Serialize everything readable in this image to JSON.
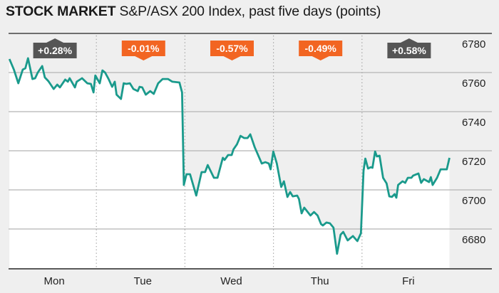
{
  "title": {
    "bold": "STOCK MARKET",
    "rest": " S&P/ASX 200 Index, past five days (points)"
  },
  "colors": {
    "line": "#1a9a8c",
    "up": "#555555",
    "down": "#f26522",
    "bg": "#efefef",
    "fill": "#ffffff"
  },
  "chart_data": {
    "type": "line",
    "title": "STOCK MARKET S&P/ASX 200 Index, past five days (points)",
    "xlabel": "",
    "ylabel": "points",
    "ylim": [
      6660,
      6780
    ],
    "xlim": [
      0,
      5
    ],
    "yticks": [
      6780,
      6760,
      6740,
      6720,
      6700,
      6680
    ],
    "ytick_labels": [
      "6780",
      "6760",
      "6740",
      "6720",
      "6700",
      "6680"
    ],
    "categories": [
      "Mon",
      "Tue",
      "Wed",
      "Thu",
      "Fri"
    ],
    "daily_change": [
      {
        "day": "Mon",
        "label": "+0.28%",
        "direction": "up"
      },
      {
        "day": "Tue",
        "label": "-0.01%",
        "direction": "down"
      },
      {
        "day": "Wed",
        "label": "-0.57%",
        "direction": "down"
      },
      {
        "day": "Thu",
        "label": "-0.49%",
        "direction": "down"
      },
      {
        "day": "Fri",
        "label": "+0.58%",
        "direction": "up"
      }
    ],
    "grid": true,
    "series": [
      {
        "name": "S&P/ASX 200",
        "points": [
          [
            0.01,
            6766.9
          ],
          [
            0.06,
            6761.5
          ],
          [
            0.11,
            6754.5
          ],
          [
            0.16,
            6761.5
          ],
          [
            0.19,
            6762.2
          ],
          [
            0.22,
            6767.3
          ],
          [
            0.27,
            6756.7
          ],
          [
            0.3,
            6757.1
          ],
          [
            0.33,
            6760.0
          ],
          [
            0.38,
            6763.3
          ],
          [
            0.41,
            6757.5
          ],
          [
            0.45,
            6755.6
          ],
          [
            0.51,
            6751.6
          ],
          [
            0.55,
            6753.8
          ],
          [
            0.58,
            6752.4
          ],
          [
            0.64,
            6756.4
          ],
          [
            0.67,
            6755.3
          ],
          [
            0.69,
            6757.1
          ],
          [
            0.75,
            6752.4
          ],
          [
            0.77,
            6755.3
          ],
          [
            0.83,
            6757.1
          ],
          [
            0.89,
            6754.5
          ],
          [
            0.93,
            6754.2
          ],
          [
            0.96,
            6749.8
          ],
          [
            0.98,
            6758.5
          ],
          [
            1.03,
            6754.5
          ],
          [
            1.06,
            6761.1
          ],
          [
            1.09,
            6760.0
          ],
          [
            1.13,
            6756.7
          ],
          [
            1.17,
            6752.7
          ],
          [
            1.2,
            6755.3
          ],
          [
            1.22,
            6748.7
          ],
          [
            1.27,
            6746.5
          ],
          [
            1.3,
            6754.5
          ],
          [
            1.33,
            6754.2
          ],
          [
            1.37,
            6754.5
          ],
          [
            1.41,
            6751.6
          ],
          [
            1.46,
            6750.5
          ],
          [
            1.48,
            6752.7
          ],
          [
            1.51,
            6752.4
          ],
          [
            1.55,
            6748.7
          ],
          [
            1.6,
            6750.5
          ],
          [
            1.64,
            6749.1
          ],
          [
            1.69,
            6754.5
          ],
          [
            1.74,
            6756.7
          ],
          [
            1.8,
            6756.7
          ],
          [
            1.85,
            6755.3
          ],
          [
            1.93,
            6754.9
          ],
          [
            1.96,
            6749.8
          ],
          [
            1.98,
            6702.5
          ],
          [
            2.01,
            6708.0
          ],
          [
            2.05,
            6708.0
          ],
          [
            2.12,
            6697.1
          ],
          [
            2.18,
            6709.1
          ],
          [
            2.22,
            6709.1
          ],
          [
            2.25,
            6712.7
          ],
          [
            2.32,
            6706.2
          ],
          [
            2.36,
            6706.2
          ],
          [
            2.42,
            6716.4
          ],
          [
            2.44,
            6715.3
          ],
          [
            2.48,
            6717.8
          ],
          [
            2.52,
            6717.8
          ],
          [
            2.54,
            6720.7
          ],
          [
            2.58,
            6723.3
          ],
          [
            2.62,
            6727.6
          ],
          [
            2.66,
            6726.5
          ],
          [
            2.7,
            6726.5
          ],
          [
            2.73,
            6728.4
          ],
          [
            2.78,
            6721.8
          ],
          [
            2.86,
            6713.5
          ],
          [
            2.9,
            6714.2
          ],
          [
            2.94,
            6713.5
          ],
          [
            2.96,
            6710.5
          ],
          [
            2.99,
            6719.6
          ],
          [
            3.03,
            6713.5
          ],
          [
            3.08,
            6701.5
          ],
          [
            3.11,
            6704.4
          ],
          [
            3.15,
            6696.4
          ],
          [
            3.18,
            6698.9
          ],
          [
            3.21,
            6696.7
          ],
          [
            3.26,
            6697.1
          ],
          [
            3.28,
            6695.3
          ],
          [
            3.31,
            6688.0
          ],
          [
            3.34,
            6690.9
          ],
          [
            3.41,
            6686.9
          ],
          [
            3.45,
            6688.7
          ],
          [
            3.49,
            6686.9
          ],
          [
            3.53,
            6682.5
          ],
          [
            3.55,
            6681.8
          ],
          [
            3.59,
            6683.3
          ],
          [
            3.63,
            6682.9
          ],
          [
            3.67,
            6680.7
          ],
          [
            3.71,
            6667.3
          ],
          [
            3.75,
            6677.1
          ],
          [
            3.78,
            6678.5
          ],
          [
            3.83,
            6674.2
          ],
          [
            3.89,
            6676.4
          ],
          [
            3.94,
            6673.8
          ],
          [
            3.98,
            6677.8
          ],
          [
            4.01,
            6709.8
          ],
          [
            4.03,
            6716.0
          ],
          [
            4.06,
            6710.9
          ],
          [
            4.09,
            6711.6
          ],
          [
            4.11,
            6711.3
          ],
          [
            4.14,
            6719.6
          ],
          [
            4.16,
            6717.1
          ],
          [
            4.19,
            6717.5
          ],
          [
            4.23,
            6706.2
          ],
          [
            4.27,
            6703.3
          ],
          [
            4.3,
            6696.7
          ],
          [
            4.33,
            6696.4
          ],
          [
            4.36,
            6697.8
          ],
          [
            4.38,
            6696.0
          ],
          [
            4.4,
            6702.5
          ],
          [
            4.45,
            6704.4
          ],
          [
            4.48,
            6703.6
          ],
          [
            4.51,
            6706.2
          ],
          [
            4.55,
            6706.2
          ],
          [
            4.57,
            6707.3
          ],
          [
            4.63,
            6708.4
          ],
          [
            4.66,
            6703.6
          ],
          [
            4.69,
            6705.5
          ],
          [
            4.75,
            6704.0
          ],
          [
            4.77,
            6706.5
          ],
          [
            4.79,
            6702.5
          ],
          [
            4.84,
            6706.2
          ],
          [
            4.88,
            6710.5
          ],
          [
            4.95,
            6710.5
          ],
          [
            4.98,
            6716.4
          ]
        ]
      }
    ]
  }
}
